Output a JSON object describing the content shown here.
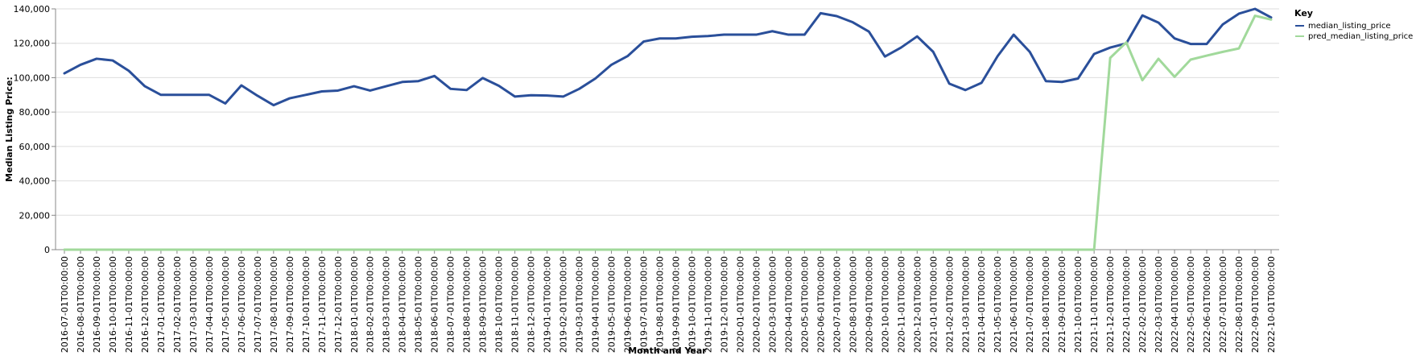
{
  "chart_data": {
    "type": "line",
    "xlabel": "Month and Year",
    "ylabel": "Median Listing Price:",
    "ylim": [
      0,
      140000
    ],
    "yticks": [
      0,
      20000,
      40000,
      60000,
      80000,
      100000,
      120000,
      140000
    ],
    "grid": true,
    "legend": {
      "title": "Key",
      "placement": "right"
    },
    "x": [
      "2016-07-01T00:00:00",
      "2016-08-01T00:00:00",
      "2016-09-01T00:00:00",
      "2016-10-01T00:00:00",
      "2016-11-01T00:00:00",
      "2016-12-01T00:00:00",
      "2017-01-01T00:00:00",
      "2017-02-01T00:00:00",
      "2017-03-01T00:00:00",
      "2017-04-01T00:00:00",
      "2017-05-01T00:00:00",
      "2017-06-01T00:00:00",
      "2017-07-01T00:00:00",
      "2017-08-01T00:00:00",
      "2017-09-01T00:00:00",
      "2017-10-01T00:00:00",
      "2017-11-01T00:00:00",
      "2017-12-01T00:00:00",
      "2018-01-01T00:00:00",
      "2018-02-01T00:00:00",
      "2018-03-01T00:00:00",
      "2018-04-01T00:00:00",
      "2018-05-01T00:00:00",
      "2018-06-01T00:00:00",
      "2018-07-01T00:00:00",
      "2018-08-01T00:00:00",
      "2018-09-01T00:00:00",
      "2018-10-01T00:00:00",
      "2018-11-01T00:00:00",
      "2018-12-01T00:00:00",
      "2019-01-01T00:00:00",
      "2019-02-01T00:00:00",
      "2019-03-01T00:00:00",
      "2019-04-01T00:00:00",
      "2019-05-01T00:00:00",
      "2019-06-01T00:00:00",
      "2019-07-01T00:00:00",
      "2019-08-01T00:00:00",
      "2019-09-01T00:00:00",
      "2019-10-01T00:00:00",
      "2019-11-01T00:00:00",
      "2019-12-01T00:00:00",
      "2020-01-01T00:00:00",
      "2020-02-01T00:00:00",
      "2020-03-01T00:00:00",
      "2020-04-01T00:00:00",
      "2020-05-01T00:00:00",
      "2020-06-01T00:00:00",
      "2020-07-01T00:00:00",
      "2020-08-01T00:00:00",
      "2020-09-01T00:00:00",
      "2020-10-01T00:00:00",
      "2020-11-01T00:00:00",
      "2020-12-01T00:00:00",
      "2021-01-01T00:00:00",
      "2021-02-01T00:00:00",
      "2021-03-01T00:00:00",
      "2021-04-01T00:00:00",
      "2021-05-01T00:00:00",
      "2021-06-01T00:00:00",
      "2021-07-01T00:00:00",
      "2021-08-01T00:00:00",
      "2021-09-01T00:00:00",
      "2021-10-01T00:00:00",
      "2021-11-01T00:00:00",
      "2021-12-01T00:00:00",
      "2022-01-01T00:00:00",
      "2022-02-01T00:00:00",
      "2022-03-01T00:00:00",
      "2022-04-01T00:00:00",
      "2022-05-01T00:00:00",
      "2022-06-01T00:00:00",
      "2022-07-01T00:00:00",
      "2022-08-01T00:00:00",
      "2022-09-01T00:00:00",
      "2022-10-01T00:00:00"
    ],
    "series": [
      {
        "name": "median_listing_price",
        "color": "#2a4f9a",
        "values": [
          102500,
          107500,
          111000,
          110000,
          104000,
          95000,
          90000,
          90000,
          90000,
          90000,
          85000,
          95500,
          89500,
          84000,
          88000,
          90000,
          92000,
          92500,
          95000,
          92500,
          95000,
          97500,
          98000,
          101000,
          93500,
          92800,
          99800,
          95300,
          89000,
          89800,
          89600,
          89000,
          93500,
          99500,
          107500,
          112500,
          121000,
          122800,
          122800,
          123800,
          124200,
          125000,
          125000,
          125000,
          127000,
          125000,
          125000,
          137500,
          135800,
          132200,
          126800,
          112300,
          117500,
          124000,
          115000,
          96500,
          92800,
          97000,
          112500,
          125000,
          115000,
          98000,
          97500,
          99500,
          113800,
          117500,
          119900,
          136200,
          132000,
          122800,
          119600,
          119600,
          131000,
          137200,
          140000,
          135000
        ]
      },
      {
        "name": "pred_median_listing_price",
        "color": "#a1d99b",
        "values": [
          0,
          0,
          0,
          0,
          0,
          0,
          0,
          0,
          0,
          0,
          0,
          0,
          0,
          0,
          0,
          0,
          0,
          0,
          0,
          0,
          0,
          0,
          0,
          0,
          0,
          0,
          0,
          0,
          0,
          0,
          0,
          0,
          0,
          0,
          0,
          0,
          0,
          0,
          0,
          0,
          0,
          0,
          0,
          0,
          0,
          0,
          0,
          0,
          0,
          0,
          0,
          0,
          0,
          0,
          0,
          0,
          0,
          0,
          0,
          0,
          0,
          0,
          0,
          0,
          0,
          111500,
          120500,
          98500,
          111000,
          100500,
          110500,
          112800,
          115000,
          117000,
          136000,
          133800
        ]
      }
    ]
  }
}
